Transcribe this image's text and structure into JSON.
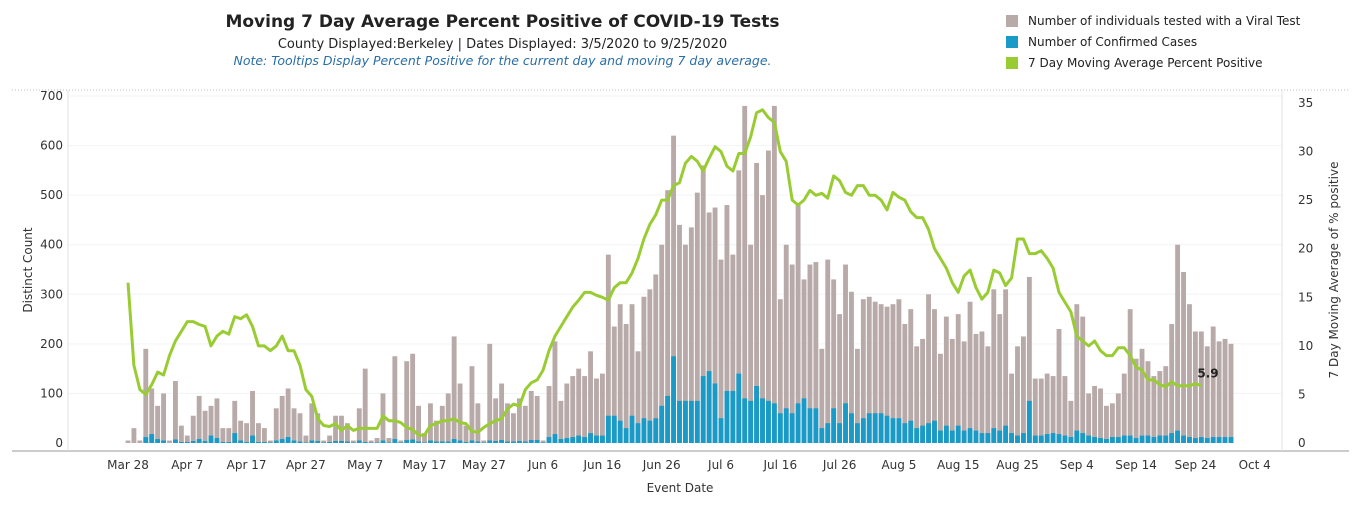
{
  "title": "Moving 7 Day Average Percent Positive of COVID-19 Tests",
  "subtitle": "County Displayed:Berkeley | Dates Displayed: 3/5/2020 to 9/25/2020",
  "note": "Note: Tooltips Display Percent Positive for the current day and moving 7 day average.",
  "legend": [
    {
      "label": "Number of individuals tested with a Viral Test",
      "color": "#b8aaa8"
    },
    {
      "label": "Number of Confirmed Cases",
      "color": "#1a9bc7"
    },
    {
      "label": "7 Day Moving Average Percent Positive",
      "color": "#99cc33"
    }
  ],
  "chart_data": {
    "type": "bar+line",
    "xlabel": "Event Date",
    "ylabel": "Distinct Count",
    "y2label": "7 Day Moving Average of % positive",
    "ylim": [
      0,
      700
    ],
    "y2lim": [
      0,
      35
    ],
    "yticks": [
      0,
      100,
      200,
      300,
      400,
      500,
      600,
      700
    ],
    "y2ticks": [
      0,
      5,
      10,
      15,
      20,
      25,
      30,
      35
    ],
    "xtick_labels": [
      "Mar 28",
      "Apr 7",
      "Apr 17",
      "Apr 27",
      "May 7",
      "May 17",
      "May 27",
      "Jun 6",
      "Jun 16",
      "Jun 26",
      "Jul 6",
      "Jul 16",
      "Jul 26",
      "Aug 5",
      "Aug 15",
      "Aug 25",
      "Sep 4",
      "Sep 14",
      "Sep 24",
      "Oct 4"
    ],
    "xtick_day_offsets": [
      0,
      10,
      20,
      30,
      40,
      50,
      60,
      70,
      80,
      90,
      100,
      110,
      120,
      130,
      140,
      150,
      160,
      170,
      180,
      190
    ],
    "start_date": "Mar 28",
    "tested": [
      5,
      30,
      5,
      190,
      110,
      75,
      100,
      5,
      125,
      35,
      15,
      55,
      95,
      65,
      75,
      90,
      30,
      30,
      85,
      45,
      40,
      105,
      40,
      30,
      5,
      70,
      95,
      110,
      70,
      60,
      15,
      80,
      60,
      5,
      15,
      55,
      55,
      40,
      5,
      70,
      150,
      5,
      10,
      100,
      10,
      175,
      5,
      165,
      180,
      75,
      20,
      80,
      45,
      75,
      100,
      215,
      120,
      35,
      155,
      80,
      5,
      200,
      90,
      120,
      80,
      60,
      90,
      75,
      105,
      95,
      5,
      115,
      205,
      85,
      120,
      135,
      150,
      135,
      185,
      130,
      140,
      380,
      235,
      280,
      240,
      280,
      185,
      295,
      310,
      340,
      400,
      510,
      620,
      440,
      400,
      435,
      505,
      560,
      465,
      475,
      370,
      480,
      380,
      550,
      680,
      400,
      565,
      500,
      590,
      680,
      290,
      400,
      360,
      480,
      330,
      360,
      365,
      190,
      370,
      330,
      260,
      360,
      305,
      190,
      290,
      295,
      285,
      280,
      275,
      280,
      290,
      240,
      270,
      195,
      210,
      300,
      270,
      180,
      255,
      210,
      260,
      205,
      285,
      220,
      225,
      195,
      310,
      260,
      310,
      140,
      195,
      215,
      335,
      130,
      130,
      140,
      135,
      230,
      135,
      85,
      280,
      255,
      100,
      115,
      110,
      75,
      80,
      100,
      140,
      270,
      170,
      190,
      165,
      135,
      145,
      155,
      240,
      400,
      345,
      280,
      225,
      225,
      195,
      235,
      205,
      210,
      200
    ],
    "confirmed": [
      0,
      0,
      0,
      12,
      18,
      8,
      5,
      0,
      7,
      2,
      2,
      4,
      8,
      4,
      15,
      10,
      2,
      2,
      20,
      5,
      2,
      15,
      2,
      2,
      1,
      5,
      8,
      12,
      5,
      3,
      1,
      5,
      4,
      1,
      2,
      4,
      4,
      3,
      1,
      5,
      2,
      1,
      1,
      5,
      1,
      8,
      1,
      6,
      7,
      3,
      1,
      5,
      3,
      3,
      3,
      8,
      5,
      2,
      5,
      3,
      1,
      5,
      4,
      6,
      3,
      3,
      4,
      3,
      6,
      6,
      1,
      12,
      18,
      8,
      10,
      12,
      15,
      12,
      20,
      15,
      15,
      55,
      55,
      45,
      30,
      55,
      40,
      50,
      45,
      50,
      75,
      95,
      175,
      85,
      85,
      85,
      85,
      135,
      145,
      120,
      50,
      105,
      105,
      140,
      90,
      85,
      115,
      90,
      85,
      80,
      60,
      70,
      60,
      80,
      90,
      70,
      70,
      30,
      40,
      70,
      40,
      80,
      60,
      40,
      50,
      60,
      60,
      60,
      55,
      50,
      50,
      40,
      45,
      30,
      35,
      40,
      45,
      25,
      35,
      25,
      35,
      25,
      30,
      25,
      20,
      20,
      30,
      25,
      35,
      20,
      15,
      20,
      85,
      15,
      15,
      18,
      20,
      18,
      15,
      12,
      25,
      20,
      15,
      12,
      10,
      8,
      12,
      12,
      15,
      15,
      10,
      15,
      15,
      12,
      15,
      15,
      20,
      25,
      15,
      12,
      10,
      12,
      10,
      12,
      12,
      12,
      12
    ],
    "pct_avg_days": [
      0,
      1,
      2,
      3,
      4,
      5,
      6,
      7,
      8,
      9,
      10,
      11,
      12,
      13,
      14,
      15,
      16,
      17,
      18,
      19,
      20,
      21,
      22,
      23,
      24,
      25,
      26,
      27,
      28,
      29,
      30,
      31,
      32,
      33,
      34,
      35,
      36,
      37,
      38,
      39,
      40,
      41,
      42,
      43,
      44,
      45,
      46,
      47,
      48,
      49,
      50,
      51,
      52,
      53,
      54,
      55,
      56,
      57,
      58,
      59,
      60,
      61,
      62,
      63,
      64,
      65,
      66,
      67,
      68,
      69,
      70,
      71,
      72,
      73,
      74,
      75,
      76,
      77,
      78,
      79,
      80,
      81,
      82,
      83,
      84,
      85,
      86,
      87,
      88,
      89,
      90,
      91,
      92,
      93,
      94,
      95,
      96,
      97,
      98,
      99,
      100,
      101,
      102,
      103,
      104,
      105,
      106,
      107,
      108,
      109,
      110,
      111,
      112,
      113,
      114,
      115,
      116,
      117,
      118,
      119,
      120,
      121,
      122,
      123,
      124,
      125,
      126,
      127,
      128,
      129,
      130,
      131,
      132,
      133,
      134,
      135,
      136,
      137,
      138,
      139,
      140,
      141,
      142,
      143,
      144,
      145,
      146,
      147,
      148,
      149,
      150,
      151,
      152,
      153,
      154,
      155,
      156,
      157,
      158,
      159,
      160,
      161,
      162,
      163,
      164,
      165,
      166,
      167,
      168,
      169,
      170,
      171,
      172,
      173,
      174,
      175,
      176,
      177,
      178,
      179,
      180,
      181
    ],
    "pct_avg": [
      16.5,
      8,
      5.5,
      5,
      6,
      7.3,
      7,
      9,
      10.5,
      11.5,
      12.5,
      12.5,
      12.2,
      12,
      10,
      11,
      11.5,
      11.2,
      13,
      12.8,
      13.2,
      12,
      10,
      10,
      9.5,
      10,
      11,
      9.5,
      9.5,
      8,
      5.5,
      4.8,
      2.5,
      1.8,
      1.7,
      2,
      1.3,
      1.8,
      1.3,
      1.5,
      1.5,
      1.5,
      1.5,
      2.8,
      2.3,
      2.3,
      2.1,
      1.6,
      1.4,
      0.8,
      0.8,
      1.8,
      2,
      2.3,
      2.3,
      2.5,
      2.1,
      2,
      1.2,
      1.1,
      1.6,
      2,
      2.3,
      2.5,
      3.5,
      4,
      3.8,
      5.5,
      6.2,
      6.5,
      7.5,
      9.5,
      11,
      12,
      13,
      14,
      14.7,
      15.5,
      15.5,
      15.2,
      15,
      14.7,
      16,
      16.5,
      16.5,
      17.5,
      19,
      21,
      22.5,
      23.5,
      25,
      25,
      26.5,
      26.8,
      28.8,
      29.5,
      29,
      28,
      29.3,
      30.5,
      30,
      28.5,
      28,
      29.8,
      29.8,
      31.5,
      34,
      34.3,
      33.5,
      33,
      30,
      29,
      25,
      24.5,
      25,
      26,
      25.5,
      25.7,
      25.2,
      27.5,
      27,
      25.8,
      25.5,
      26.5,
      26.5,
      25.5,
      25.5,
      25,
      24,
      25.8,
      25.3,
      25,
      23.8,
      23.2,
      23.2,
      22,
      20,
      19,
      18,
      16.5,
      15.5,
      17.2,
      17.8,
      16,
      14.8,
      15.5,
      17.8,
      17.5,
      16.2,
      17,
      21,
      21,
      19.5,
      19.5,
      19.8,
      19,
      18,
      15.5,
      14.5,
      13.5,
      11,
      10.5,
      10,
      10.5,
      9.5,
      9,
      9,
      9.8,
      9.8,
      9,
      7.8,
      7.5,
      6.5,
      6.5,
      6,
      5.8,
      6.3,
      5.9,
      5.9,
      5.9,
      6.1,
      5.9
    ],
    "last_value_label": "5.9",
    "grid": true
  }
}
